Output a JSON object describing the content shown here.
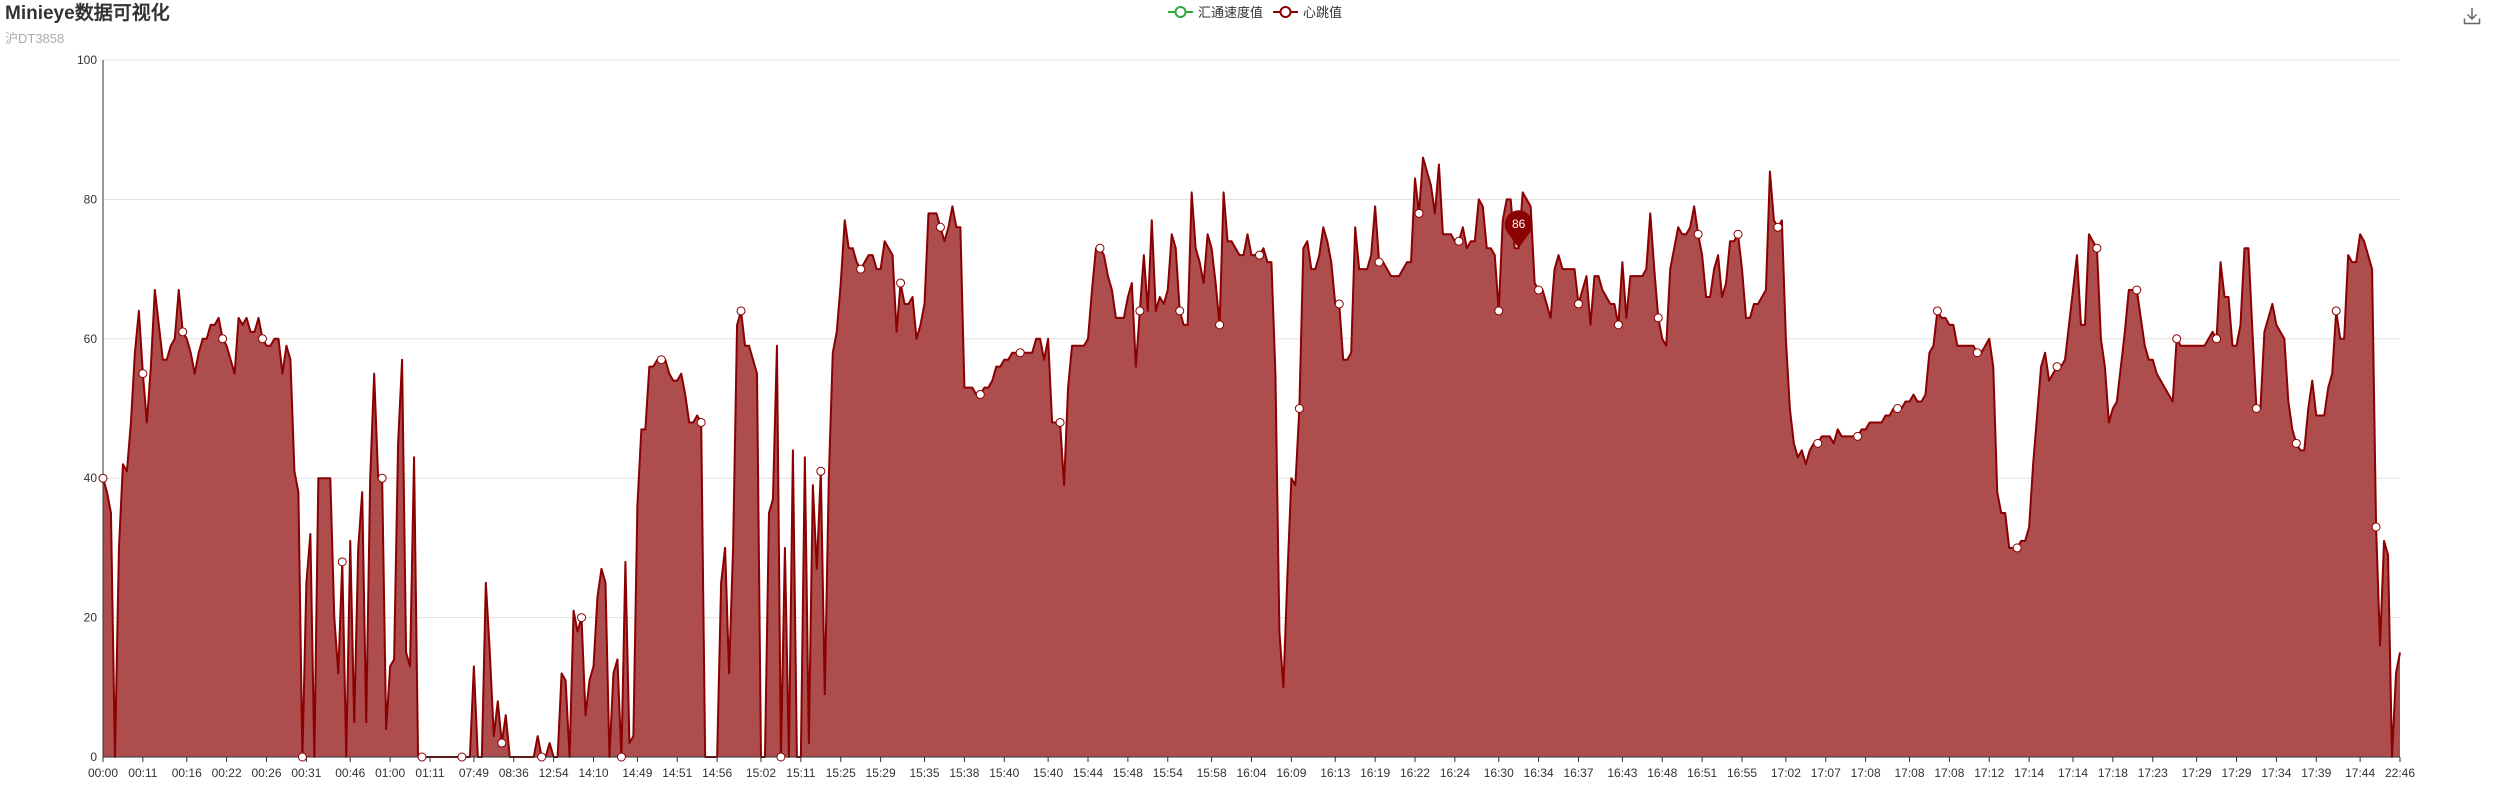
{
  "header": {
    "title": "Minieye数据可视化",
    "subtitle": "沪DT3858"
  },
  "legend": {
    "items": [
      {
        "label": "汇通速度值",
        "color": "#2eaa3c"
      },
      {
        "label": "心跳值",
        "color": "#8b0000"
      }
    ]
  },
  "toolbar": {
    "download_icon": "download-icon"
  },
  "chart_data": {
    "type": "area",
    "y_ticks": [
      "0",
      "20",
      "40",
      "60",
      "80",
      "100"
    ],
    "ylim": [
      0,
      100
    ],
    "x_tick_labels": [
      "00:00",
      "00:11",
      "00:16",
      "00:22",
      "00:26",
      "00:31",
      "00:46",
      "01:00",
      "01:11",
      "07:49",
      "08:36",
      "12:54",
      "14:10",
      "14:49",
      "14:51",
      "14:56",
      "15:02",
      "15:11",
      "15:25",
      "15:29",
      "15:35",
      "15:38",
      "15:40",
      "15:40",
      "15:44",
      "15:48",
      "15:54",
      "15:58",
      "16:04",
      "16:09",
      "16:13",
      "16:19",
      "16:22",
      "16:24",
      "16:30",
      "16:34",
      "16:37",
      "16:43",
      "16:48",
      "16:51",
      "16:55",
      "17:02",
      "17:07",
      "17:08",
      "17:08",
      "17:08",
      "17:12",
      "17:14",
      "17:14",
      "17:18",
      "17:23",
      "17:29",
      "17:29",
      "17:34",
      "17:39",
      "17:44",
      "22:46"
    ],
    "series": [
      {
        "name": "汇通速度值",
        "color": "#2eaa3c",
        "values": []
      },
      {
        "name": "心跳值",
        "color": "#8b0000",
        "fill": "#ad4d4d",
        "max_label": "86",
        "max_index": 355,
        "marker_step": 10,
        "values": [
          40,
          38,
          35,
          0,
          30,
          42,
          41,
          48,
          58,
          64,
          55,
          48,
          56,
          67,
          62,
          57,
          57,
          59,
          60,
          67,
          61,
          60,
          58,
          55,
          58,
          60,
          60,
          62,
          62,
          63,
          60,
          59,
          57,
          55,
          63,
          62,
          63,
          61,
          61,
          63,
          60,
          59,
          59,
          60,
          60,
          55,
          59,
          57,
          41,
          38,
          0,
          25,
          32,
          0,
          40,
          40,
          40,
          40,
          20,
          12,
          28,
          0,
          31,
          5,
          30,
          38,
          5,
          40,
          55,
          40,
          40,
          4,
          13,
          14,
          45,
          57,
          15,
          13,
          43,
          0,
          0,
          0,
          0,
          0,
          0,
          0,
          0,
          0,
          0,
          0,
          0,
          0,
          0,
          13,
          0,
          0,
          25,
          15,
          3,
          8,
          2,
          6,
          0,
          0,
          0,
          0,
          0,
          0,
          0,
          3,
          0,
          0,
          2,
          0,
          0,
          12,
          11,
          0,
          21,
          18,
          20,
          6,
          11,
          13,
          23,
          27,
          25,
          0,
          12,
          14,
          0,
          28,
          2,
          3,
          36,
          47,
          47,
          56,
          56,
          57,
          57,
          57,
          55,
          54,
          54,
          55,
          52,
          48,
          48,
          49,
          48,
          0,
          0,
          0,
          0,
          25,
          30,
          12,
          30,
          62,
          64,
          59,
          59,
          57,
          55,
          0,
          0,
          35,
          37,
          59,
          0,
          30,
          0,
          44,
          0,
          0,
          43,
          2,
          39,
          27,
          41,
          9,
          40,
          58,
          61,
          68,
          77,
          73,
          73,
          71,
          70,
          71,
          72,
          72,
          70,
          70,
          74,
          73,
          72,
          61,
          68,
          65,
          65,
          66,
          60,
          62,
          65,
          78,
          78,
          78,
          76,
          74,
          76,
          79,
          76,
          76,
          53,
          53,
          53,
          52,
          52,
          53,
          53,
          54,
          56,
          56,
          57,
          57,
          58,
          58,
          58,
          58,
          58,
          58,
          60,
          60,
          57,
          60,
          48,
          48,
          48,
          39,
          53,
          59,
          59,
          59,
          59,
          60,
          67,
          73,
          73,
          72,
          69,
          67,
          63,
          63,
          63,
          66,
          68,
          56,
          64,
          72,
          64,
          77,
          64,
          66,
          65,
          67,
          75,
          73,
          64,
          62,
          62,
          81,
          73,
          71,
          68,
          75,
          73,
          68,
          62,
          81,
          74,
          74,
          73,
          72,
          72,
          75,
          72,
          72,
          72,
          73,
          71,
          71,
          55,
          18,
          10,
          26,
          40,
          39,
          50,
          73,
          74,
          70,
          70,
          72,
          76,
          74,
          71,
          65,
          65,
          57,
          57,
          58,
          76,
          70,
          70,
          70,
          72,
          79,
          71,
          71,
          70,
          69,
          69,
          69,
          70,
          71,
          71,
          83,
          78,
          86,
          84,
          82,
          78,
          85,
          75,
          75,
          75,
          74,
          74,
          76,
          73,
          74,
          74,
          80,
          79,
          73,
          73,
          72,
          64,
          77,
          80,
          80,
          73,
          73,
          81,
          80,
          79,
          68,
          67,
          67,
          65,
          63,
          70,
          72,
          70,
          70,
          70,
          70,
          65,
          67,
          69,
          62,
          69,
          69,
          67,
          66,
          65,
          65,
          62,
          71,
          63,
          69,
          69,
          69,
          69,
          70,
          78,
          70,
          63,
          60,
          59,
          70,
          73,
          76,
          75,
          75,
          76,
          79,
          75,
          72,
          66,
          66,
          70,
          72,
          66,
          68,
          74,
          74,
          75,
          70,
          63,
          63,
          65,
          65,
          66,
          67,
          84,
          77,
          76,
          77,
          60,
          50,
          45,
          43,
          44,
          42,
          44,
          45,
          45,
          46,
          46,
          46,
          45,
          47,
          46,
          46,
          46,
          46,
          46,
          47,
          47,
          48,
          48,
          48,
          48,
          49,
          49,
          50,
          50,
          50,
          51,
          51,
          52,
          51,
          51,
          52,
          58,
          59,
          64,
          63,
          63,
          62,
          62,
          59,
          59,
          59,
          59,
          59,
          58,
          58,
          59,
          60,
          56,
          38,
          35,
          35,
          30,
          30,
          30,
          31,
          31,
          33,
          42,
          49,
          56,
          58,
          54,
          55,
          56,
          56,
          57,
          62,
          67,
          72,
          62,
          62,
          75,
          74,
          73,
          60,
          56,
          48,
          50,
          51,
          56,
          61,
          67,
          67,
          67,
          63,
          59,
          57,
          57,
          55,
          54,
          53,
          52,
          51,
          60,
          59,
          59,
          59,
          59,
          59,
          59,
          59,
          60,
          61,
          60,
          71,
          66,
          66,
          59,
          59,
          62,
          73,
          73,
          61,
          50,
          50,
          61,
          63,
          65,
          62,
          61,
          60,
          51,
          47,
          45,
          44,
          44,
          50,
          54,
          49,
          49,
          49,
          53,
          55,
          64,
          60,
          60,
          72,
          71,
          71,
          75,
          74,
          72,
          70,
          33,
          16,
          31,
          29,
          0,
          12,
          15
        ]
      }
    ]
  }
}
